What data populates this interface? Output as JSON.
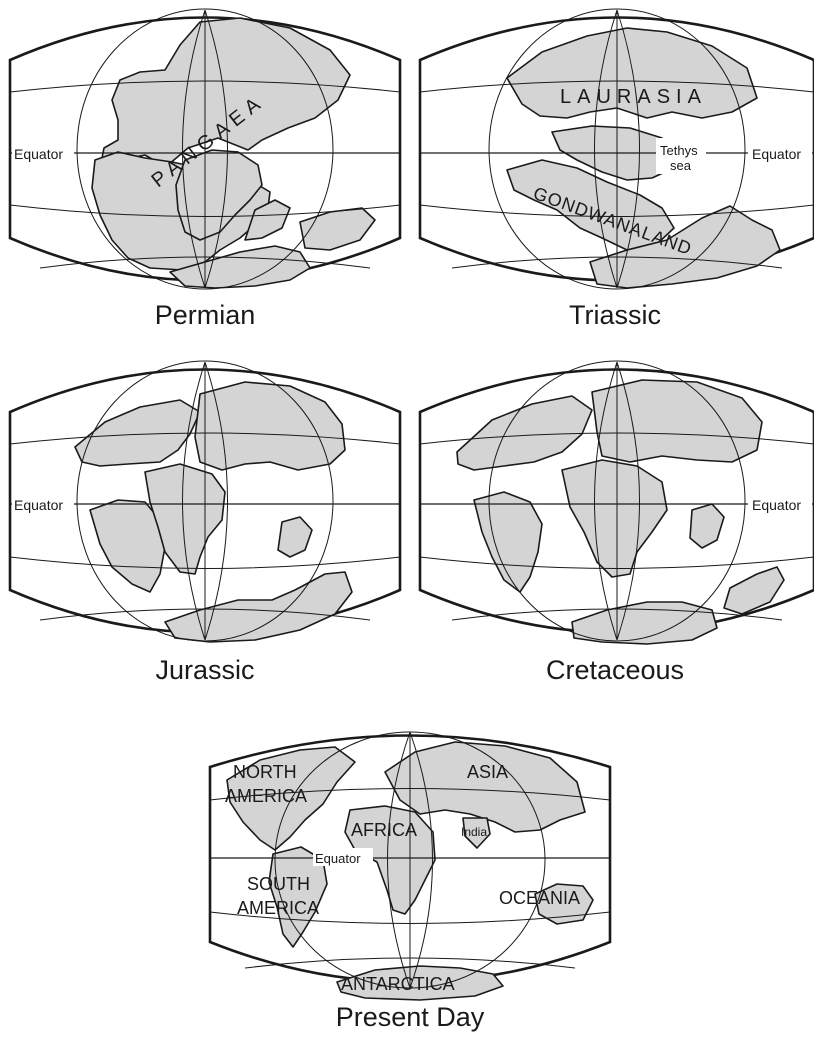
{
  "maps": [
    {
      "id": "permian",
      "caption": "Permian",
      "equator_label": "Equator",
      "labels": {
        "pangaea": "PANGAEA"
      }
    },
    {
      "id": "triassic",
      "caption": "Triassic",
      "equator_label": "Equator",
      "labels": {
        "laurasia": "LAURASIA",
        "gondwanaland": "GONDWANALAND",
        "tethys1": "Tethys",
        "tethys2": "sea"
      }
    },
    {
      "id": "jurassic",
      "caption": "Jurassic",
      "equator_label": "Equator"
    },
    {
      "id": "cretaceous",
      "caption": "Cretaceous",
      "equator_label": "Equator"
    },
    {
      "id": "present",
      "caption": "Present Day",
      "equator_label": "Equator",
      "labels": {
        "north1": "NORTH",
        "north2": "AMERICA",
        "asia": "ASIA",
        "india": "India",
        "africa": "AFRICA",
        "south1": "SOUTH",
        "south2": "AMERICA",
        "oceania": "OCEANIA",
        "antarctica": "ANTARCTICA"
      }
    }
  ],
  "colors": {
    "land": "#d4d4d4",
    "ink": "#1a1a1a",
    "ocean": "#ffffff"
  }
}
